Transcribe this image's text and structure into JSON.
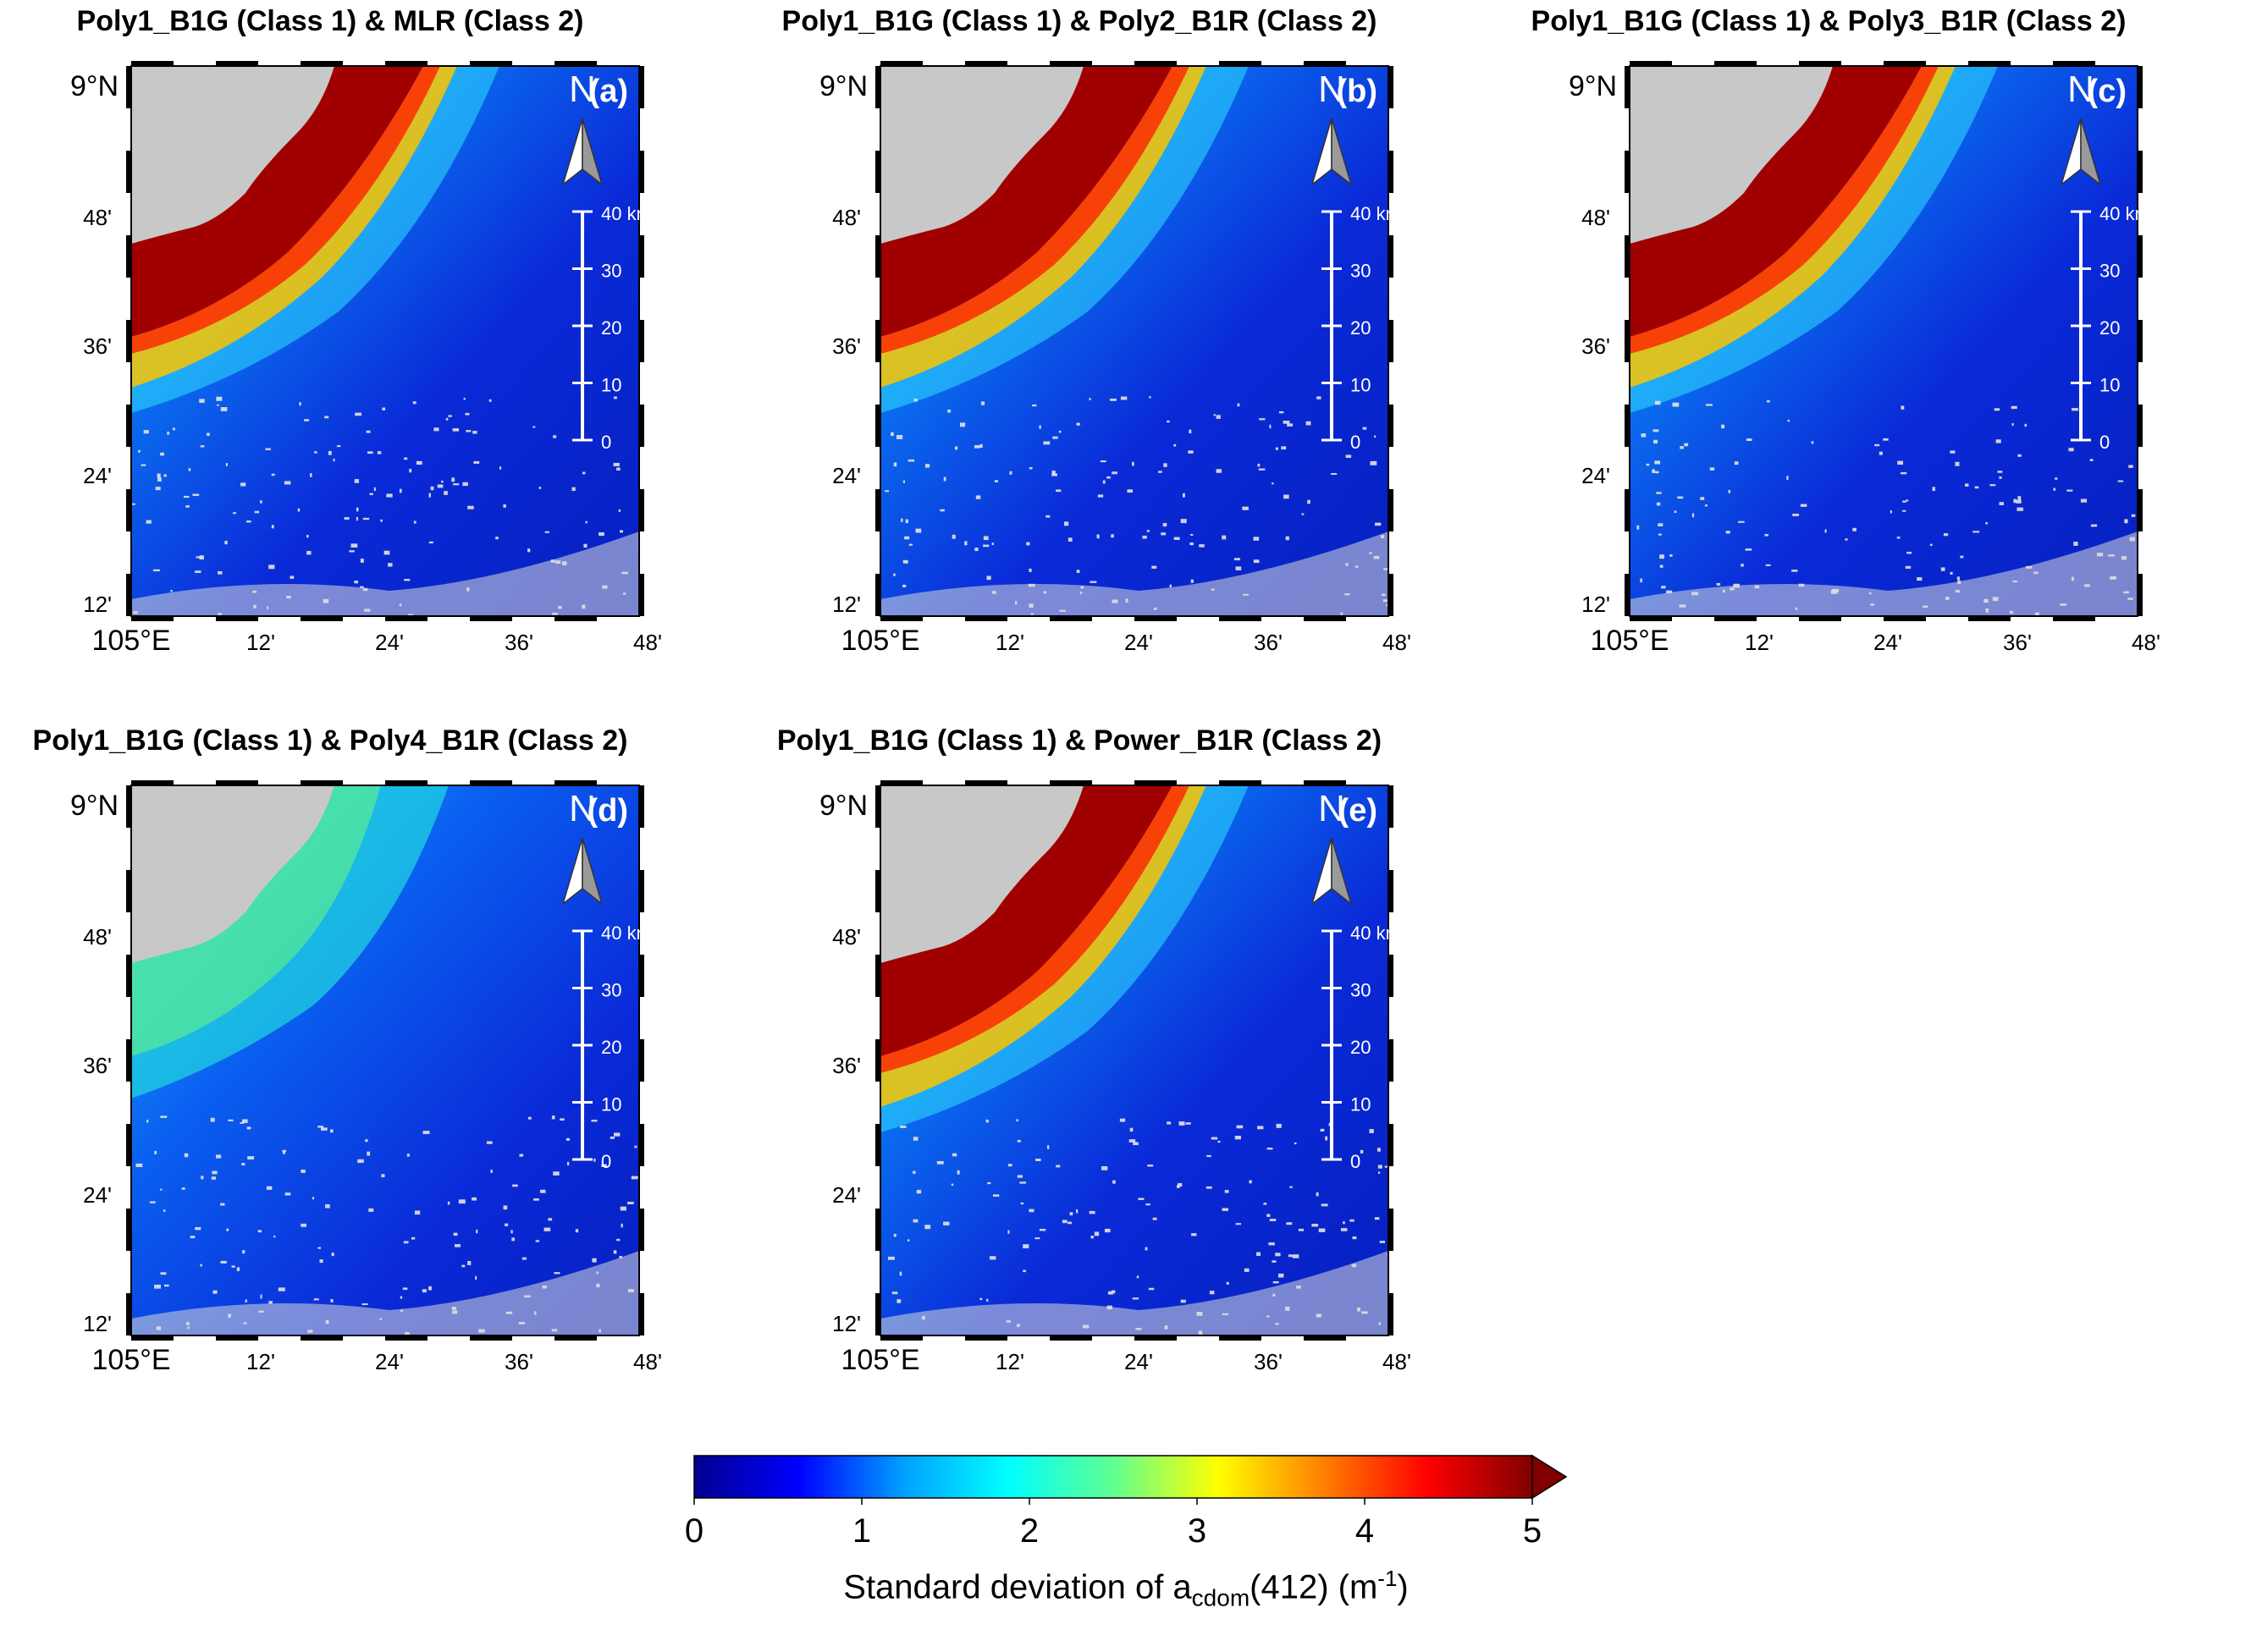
{
  "panels": [
    {
      "title": "Poly1_B1G (Class 1) & MLR (Class 2)",
      "tag": "(a)",
      "scheme": "saturated"
    },
    {
      "title": "Poly1_B1G (Class 1) & Poly2_B1R (Class 2)",
      "tag": "(b)",
      "scheme": "saturated"
    },
    {
      "title": "Poly1_B1G (Class 1) & Poly3_B1R (Class 2)",
      "tag": "(c)",
      "scheme": "saturated"
    },
    {
      "title": "Poly1_B1G (Class 1) & Poly4_B1R (Class 2)",
      "tag": "(d)",
      "scheme": "green"
    },
    {
      "title": "Poly1_B1G (Class 1) & Power_B1R (Class 2)",
      "tag": "(e)",
      "scheme": "saturated"
    }
  ],
  "axes": {
    "lat_labels": [
      "9°N",
      "48'",
      "36'",
      "24'",
      "12'"
    ],
    "lon_labels": [
      "105°E",
      "12'",
      "24'",
      "36'",
      "48'"
    ]
  },
  "north_arrow": {
    "label": "N"
  },
  "scale_bar": {
    "unit_label": "40 km",
    "ticks": [
      "30",
      "20",
      "10",
      "0"
    ]
  },
  "colorbar": {
    "ticks": [
      "0",
      "1",
      "2",
      "3",
      "4",
      "5"
    ],
    "min": 0,
    "max": 5,
    "extend": "max",
    "label_main": "Standard deviation of a",
    "label_sub": "cdom",
    "label_rest": "(412) (m",
    "label_sup": "-1",
    "label_end": ")",
    "colors": [
      "#00008f",
      "#0000ff",
      "#00a0ff",
      "#00ffff",
      "#60ff90",
      "#ffff00",
      "#ff8000",
      "#ff0000",
      "#800000"
    ]
  },
  "colors": {
    "land": "#c8c8c8",
    "sea": "#0a2ad8",
    "saturated": "#a00000",
    "green_high": "#30e890"
  }
}
